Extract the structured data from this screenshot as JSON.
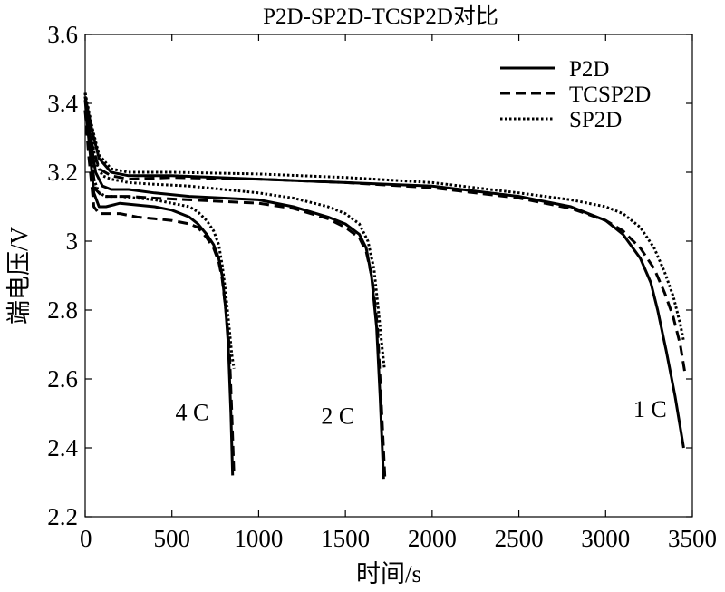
{
  "chart_data": {
    "type": "line",
    "title": "P2D-SP2D-TCSP2D对比",
    "xlabel": "时间/s",
    "ylabel": "端电压/V",
    "xlim": [
      0,
      3500
    ],
    "ylim": [
      2.2,
      3.6
    ],
    "xticks": [
      0,
      500,
      1000,
      1500,
      2000,
      2500,
      3000,
      3500
    ],
    "yticks": [
      2.2,
      2.4,
      2.6,
      2.8,
      3.0,
      3.2,
      3.4,
      3.6
    ],
    "xtick_labels": [
      "0",
      "500",
      "1000",
      "1500",
      "2000",
      "2500",
      "3000",
      "3500"
    ],
    "ytick_labels": [
      "2.2",
      "2.4",
      "2.6",
      "2.8",
      "3",
      "3.2",
      "3.4",
      "3.6"
    ],
    "grid": false,
    "legend": {
      "position": "top-right",
      "entries": [
        {
          "label": "P2D",
          "style": "solid"
        },
        {
          "label": "TCSP2D",
          "style": "dashed"
        },
        {
          "label": "SP2D",
          "style": "dotted"
        }
      ]
    },
    "annotations": [
      {
        "text": "4 C",
        "x": 520,
        "y": 2.48
      },
      {
        "text": "2 C",
        "x": 1360,
        "y": 2.47
      },
      {
        "text": "1 C",
        "x": 3160,
        "y": 2.49
      }
    ],
    "series": [
      {
        "name": "P2D",
        "rate": "4 C",
        "style": "solid",
        "x": [
          0,
          20,
          50,
          80,
          120,
          200,
          300,
          400,
          500,
          600,
          650,
          700,
          740,
          770,
          790,
          810,
          825,
          840,
          850
        ],
        "y": [
          3.41,
          3.3,
          3.14,
          3.1,
          3.1,
          3.11,
          3.105,
          3.1,
          3.09,
          3.07,
          3.05,
          3.02,
          2.99,
          2.95,
          2.9,
          2.8,
          2.7,
          2.5,
          2.32
        ]
      },
      {
        "name": "TCSP2D",
        "rate": "4 C",
        "style": "dashed",
        "x": [
          0,
          20,
          50,
          80,
          120,
          200,
          300,
          400,
          500,
          600,
          650,
          700,
          740,
          770,
          790,
          810,
          830,
          845,
          858
        ],
        "y": [
          3.38,
          3.25,
          3.1,
          3.08,
          3.08,
          3.08,
          3.07,
          3.065,
          3.06,
          3.05,
          3.04,
          3.01,
          2.98,
          2.94,
          2.89,
          2.8,
          2.7,
          2.5,
          2.32
        ]
      },
      {
        "name": "SP2D",
        "rate": "4 C",
        "style": "dotted",
        "x": [
          0,
          20,
          50,
          80,
          120,
          200,
          300,
          400,
          500,
          600,
          650,
          700,
          740,
          770,
          790,
          810,
          830,
          845,
          858
        ],
        "y": [
          3.43,
          3.33,
          3.18,
          3.14,
          3.13,
          3.13,
          3.125,
          3.12,
          3.11,
          3.1,
          3.085,
          3.06,
          3.03,
          2.99,
          2.93,
          2.85,
          2.75,
          2.67,
          2.63
        ]
      },
      {
        "name": "P2D",
        "rate": "2 C",
        "style": "solid",
        "x": [
          0,
          30,
          60,
          100,
          150,
          250,
          400,
          600,
          800,
          1000,
          1200,
          1400,
          1500,
          1580,
          1620,
          1650,
          1680,
          1700,
          1720
        ],
        "y": [
          3.42,
          3.3,
          3.2,
          3.16,
          3.15,
          3.15,
          3.14,
          3.13,
          3.125,
          3.12,
          3.1,
          3.07,
          3.05,
          3.02,
          2.98,
          2.9,
          2.75,
          2.55,
          2.31
        ]
      },
      {
        "name": "TCSP2D",
        "rate": "2 C",
        "style": "dashed",
        "x": [
          0,
          30,
          60,
          100,
          150,
          250,
          400,
          600,
          800,
          1000,
          1200,
          1400,
          1500,
          1580,
          1620,
          1655,
          1685,
          1705,
          1728
        ],
        "y": [
          3.38,
          3.25,
          3.15,
          3.13,
          3.13,
          3.13,
          3.125,
          3.12,
          3.115,
          3.11,
          3.095,
          3.065,
          3.04,
          3.01,
          2.97,
          2.89,
          2.75,
          2.55,
          2.31
        ]
      },
      {
        "name": "SP2D",
        "rate": "2 C",
        "style": "dotted",
        "x": [
          0,
          30,
          60,
          100,
          150,
          250,
          400,
          600,
          800,
          1000,
          1200,
          1400,
          1500,
          1580,
          1630,
          1665,
          1690,
          1710,
          1725
        ],
        "y": [
          3.43,
          3.33,
          3.23,
          3.19,
          3.18,
          3.17,
          3.165,
          3.16,
          3.15,
          3.14,
          3.125,
          3.1,
          3.08,
          3.05,
          3.0,
          2.92,
          2.8,
          2.7,
          2.63
        ]
      },
      {
        "name": "P2D",
        "rate": "1 C",
        "style": "solid",
        "x": [
          0,
          40,
          80,
          150,
          250,
          500,
          1000,
          1500,
          2000,
          2500,
          2800,
          3000,
          3100,
          3200,
          3260,
          3300,
          3350,
          3400,
          3450
        ],
        "y": [
          3.42,
          3.32,
          3.24,
          3.2,
          3.19,
          3.19,
          3.18,
          3.17,
          3.16,
          3.13,
          3.1,
          3.06,
          3.02,
          2.95,
          2.88,
          2.8,
          2.68,
          2.55,
          2.4
        ]
      },
      {
        "name": "TCSP2D",
        "rate": "1 C",
        "style": "dashed",
        "x": [
          0,
          40,
          80,
          150,
          250,
          500,
          1000,
          1500,
          2000,
          2500,
          2800,
          3000,
          3100,
          3200,
          3280,
          3340,
          3390,
          3430,
          3460
        ],
        "y": [
          3.38,
          3.28,
          3.21,
          3.19,
          3.18,
          3.185,
          3.18,
          3.17,
          3.155,
          3.125,
          3.095,
          3.06,
          3.03,
          2.98,
          2.92,
          2.85,
          2.78,
          2.7,
          2.61
        ]
      },
      {
        "name": "SP2D",
        "rate": "1 C",
        "style": "dotted",
        "x": [
          0,
          40,
          80,
          150,
          250,
          500,
          1000,
          1500,
          2000,
          2500,
          2800,
          3000,
          3100,
          3200,
          3280,
          3340,
          3390,
          3430,
          3450
        ],
        "y": [
          3.43,
          3.33,
          3.25,
          3.21,
          3.2,
          3.2,
          3.195,
          3.185,
          3.17,
          3.14,
          3.12,
          3.1,
          3.08,
          3.04,
          2.98,
          2.91,
          2.84,
          2.76,
          2.71
        ]
      }
    ]
  }
}
